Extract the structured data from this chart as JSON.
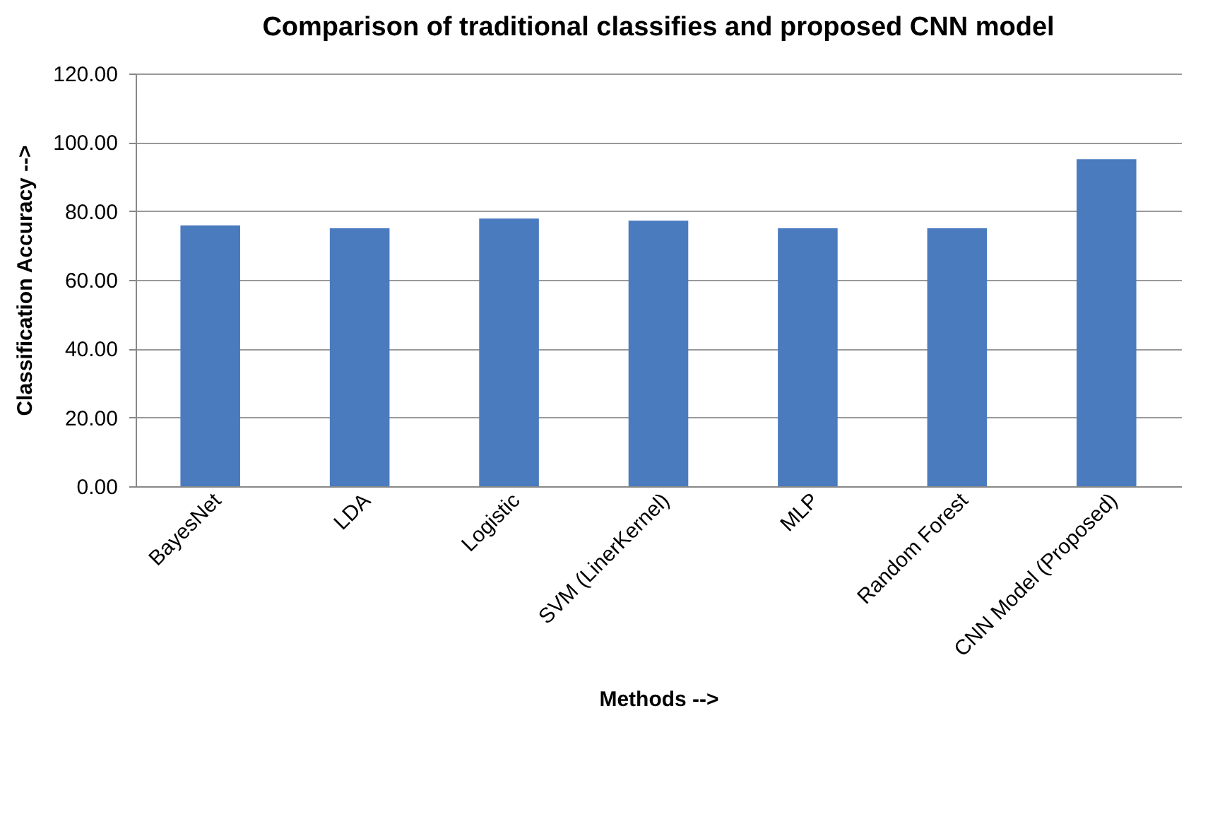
{
  "chart_data": {
    "type": "bar",
    "title": "Comparison of traditional classifies and proposed CNN model",
    "xlabel": "Methods -->",
    "ylabel": "Classification  Accuracy -->",
    "categories": [
      "BayesNet",
      "LDA",
      "Logistic",
      "SVM (LinerKernel)",
      "MLP",
      "Random Forest",
      "CNN Model (Proposed)"
    ],
    "values": [
      75.8,
      75.0,
      77.8,
      77.2,
      75.0,
      75.0,
      95.1
    ],
    "color": "#4a7bbf",
    "ylim": [
      0,
      120
    ],
    "yticks": [
      {
        "value": 0,
        "label": "0.00"
      },
      {
        "value": 20,
        "label": "20.00"
      },
      {
        "value": 40,
        "label": "40.00"
      },
      {
        "value": 60,
        "label": "60.00"
      },
      {
        "value": 80,
        "label": "80.00"
      },
      {
        "value": 100,
        "label": "100.00"
      },
      {
        "value": 120,
        "label": "120.00"
      }
    ],
    "grid": "y"
  }
}
